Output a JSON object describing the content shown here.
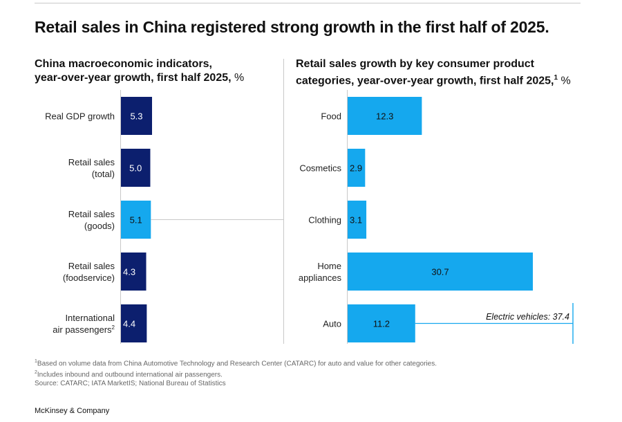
{
  "title": "Retail sales in China registered strong growth in the first half of 2025.",
  "colors": {
    "dark": "#0c1f6e",
    "light": "#15a8ee",
    "axis": "#c8c8c8"
  },
  "chart_data": [
    {
      "type": "bar",
      "orientation": "horizontal",
      "title": "China macroeconomic indicators, year-over-year growth, first half 2025,",
      "unit": "%",
      "categories": [
        [
          "Real GDP growth"
        ],
        [
          "Retail sales",
          "(total)"
        ],
        [
          "Retail sales",
          "(goods)"
        ],
        [
          "Retail sales",
          "(foodservice)"
        ],
        [
          "International",
          "air passengers"
        ]
      ],
      "category_footnotes": [
        "",
        "",
        "",
        "",
        "2"
      ],
      "values": [
        5.3,
        5.0,
        5.1,
        4.3,
        4.4
      ],
      "value_labels": [
        "5.3",
        "5.0",
        "5.1",
        "4.3",
        "4.4"
      ],
      "bar_colors": [
        "dark",
        "dark",
        "light",
        "dark",
        "dark"
      ],
      "xlim": [
        0,
        5.3
      ]
    },
    {
      "type": "bar",
      "orientation": "horizontal",
      "title": "Retail sales growth by key consumer product categories, year-over-year growth, first half 2025,",
      "title_footnote": "1",
      "unit": "%",
      "categories": [
        [
          "Food"
        ],
        [
          "Cosmetics"
        ],
        [
          "Clothing"
        ],
        [
          "Home",
          "appliances"
        ],
        [
          "Auto"
        ]
      ],
      "values": [
        12.3,
        2.9,
        3.1,
        30.7,
        11.2
      ],
      "value_labels": [
        "12.3",
        "2.9",
        "3.1",
        "30.7",
        "11.2"
      ],
      "bar_colors": [
        "light",
        "light",
        "light",
        "light",
        "light"
      ],
      "xlim": [
        0,
        30.7
      ],
      "annotation": {
        "category": "Auto",
        "label": "Electric vehicles:",
        "value": 37.4,
        "value_label": "37.4"
      }
    }
  ],
  "footnotes": [
    {
      "mark": "1",
      "text": "Based on volume data from China Automotive Technology and Research Center (CATARC) for auto and value for other categories."
    },
    {
      "mark": "2",
      "text": "Includes inbound and outbound international air passengers."
    }
  ],
  "source": "Source: CATARC; IATA MarketIS; National Bureau of Statistics",
  "brand": "McKinsey & Company"
}
